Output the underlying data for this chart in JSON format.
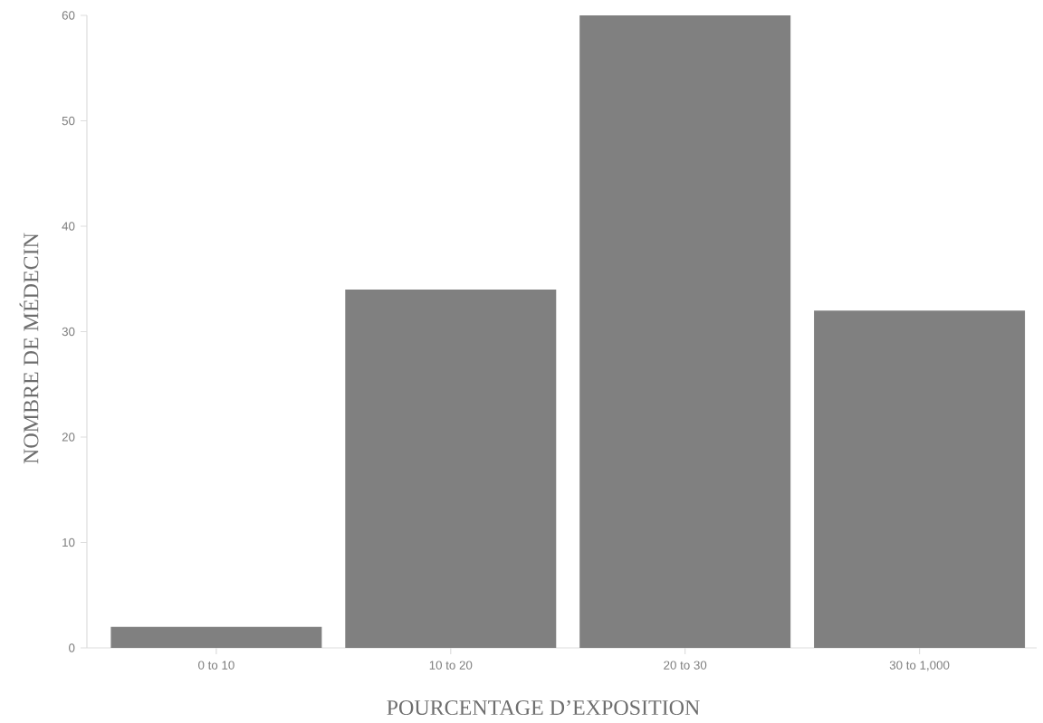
{
  "chart_data": {
    "type": "bar",
    "xlabel": "POURCENTAGE D’EXPOSITION",
    "ylabel": "NOMBRE DE MÉDECIN",
    "categories": [
      "0 to 10",
      "10 to 20",
      "20 to 30",
      "30 to 1,000"
    ],
    "values": [
      2,
      34,
      60,
      32
    ],
    "color": "#808080",
    "ylim": [
      0,
      60
    ],
    "yticks": [
      0,
      10,
      20,
      30,
      40,
      50,
      60
    ]
  }
}
